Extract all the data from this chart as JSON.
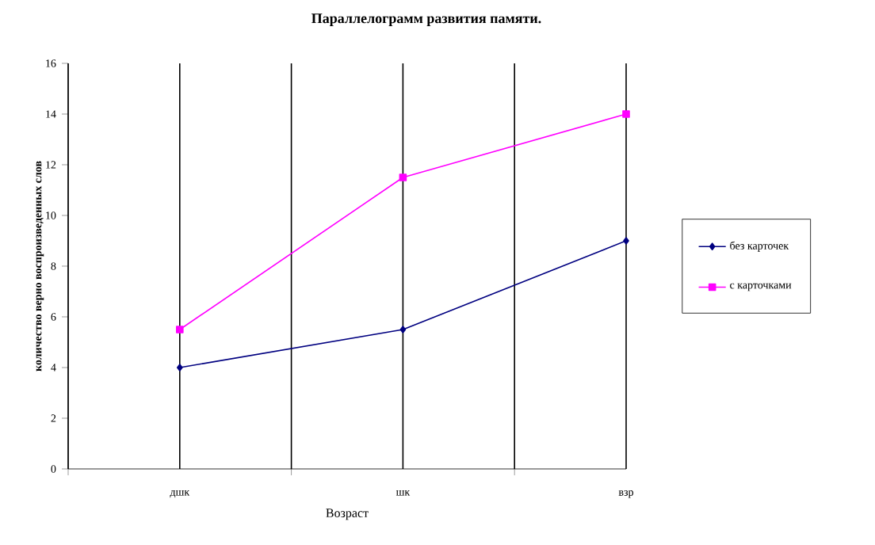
{
  "chart_data": {
    "type": "line",
    "title": "Параллелограмм развития памяти.",
    "xlabel": "Возраст",
    "ylabel": "количество верно воспроизведенных слов",
    "categories": [
      "дшк",
      "шк",
      "взр"
    ],
    "series": [
      {
        "name": "без карточек",
        "color": "#000080",
        "marker": "diamond",
        "values": [
          4,
          5.5,
          9
        ]
      },
      {
        "name": "с карточками",
        "color": "#ff00ff",
        "marker": "square",
        "values": [
          5.5,
          11.5,
          14
        ]
      }
    ],
    "ylim": [
      0,
      16
    ],
    "yticks": [
      0,
      2,
      4,
      6,
      8,
      10,
      12,
      14,
      16
    ],
    "grid": "x",
    "legend": "right",
    "line_style": "solid"
  }
}
